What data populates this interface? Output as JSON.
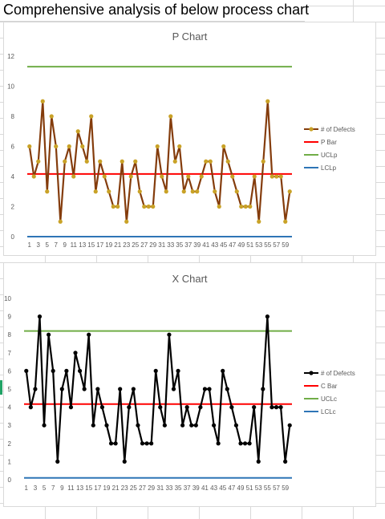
{
  "sheet": {
    "title": "Comprehensive analysis of below process chart"
  },
  "chart_data": [
    {
      "type": "line",
      "title": "P Chart",
      "xlabel": "",
      "ylabel": "",
      "ylim": [
        0,
        12
      ],
      "y_ticks": [
        0,
        2,
        4,
        6,
        8,
        10,
        12
      ],
      "x": [
        1,
        2,
        3,
        4,
        5,
        6,
        7,
        8,
        9,
        10,
        11,
        12,
        13,
        14,
        15,
        16,
        17,
        18,
        19,
        20,
        21,
        22,
        23,
        24,
        25,
        26,
        27,
        28,
        29,
        30,
        31,
        32,
        33,
        34,
        35,
        36,
        37,
        38,
        39,
        40,
        41,
        42,
        43,
        44,
        45,
        46,
        47,
        48,
        49,
        50,
        51,
        52,
        53,
        54,
        55,
        56,
        57,
        58,
        59,
        60
      ],
      "x_tick_labels": [
        "1",
        "3",
        "5",
        "7",
        "9",
        "11",
        "13",
        "15",
        "17",
        "19",
        "21",
        "23",
        "25",
        "27",
        "29",
        "31",
        "33",
        "35",
        "37",
        "39",
        "41",
        "43",
        "45",
        "47",
        "49",
        "51",
        "53",
        "55",
        "57",
        "59"
      ],
      "series": [
        {
          "name": "# of Defects",
          "color": "#843c0c",
          "marker_color": "#c9a227",
          "values": [
            6,
            4,
            5,
            9,
            3,
            8,
            6,
            1,
            5,
            6,
            4,
            7,
            6,
            5,
            8,
            3,
            5,
            4,
            3,
            2,
            2,
            5,
            1,
            4,
            5,
            3,
            2,
            2,
            2,
            6,
            4,
            3,
            8,
            5,
            6,
            3,
            4,
            3,
            3,
            4,
            5,
            5,
            3,
            2,
            6,
            5,
            4,
            3,
            2,
            2,
            2,
            4,
            1,
            5,
            9,
            4,
            4,
            4,
            1,
            3
          ]
        },
        {
          "name": "P Bar",
          "color": "#ff0000",
          "constant": 4.17
        },
        {
          "name": "UCLp",
          "color": "#70ad47",
          "constant": 11.3
        },
        {
          "name": "LCLp",
          "color": "#2e75b6",
          "constant": 0
        }
      ],
      "legend_position": "right",
      "grid": false
    },
    {
      "type": "line",
      "title": "X Chart",
      "xlabel": "",
      "ylabel": "",
      "ylim": [
        0,
        10
      ],
      "y_ticks": [
        0,
        1,
        2,
        3,
        4,
        5,
        6,
        7,
        8,
        9,
        10
      ],
      "x": [
        1,
        2,
        3,
        4,
        5,
        6,
        7,
        8,
        9,
        10,
        11,
        12,
        13,
        14,
        15,
        16,
        17,
        18,
        19,
        20,
        21,
        22,
        23,
        24,
        25,
        26,
        27,
        28,
        29,
        30,
        31,
        32,
        33,
        34,
        35,
        36,
        37,
        38,
        39,
        40,
        41,
        42,
        43,
        44,
        45,
        46,
        47,
        48,
        49,
        50,
        51,
        52,
        53,
        54,
        55,
        56,
        57,
        58,
        59,
        60
      ],
      "x_tick_labels": [
        "1",
        "3",
        "5",
        "7",
        "9",
        "11",
        "13",
        "15",
        "17",
        "19",
        "21",
        "23",
        "25",
        "27",
        "29",
        "31",
        "33",
        "35",
        "37",
        "39",
        "41",
        "43",
        "45",
        "47",
        "49",
        "51",
        "53",
        "55",
        "57",
        "59"
      ],
      "series": [
        {
          "name": "# of Defects",
          "color": "#000000",
          "marker_color": "#000000",
          "values": [
            6,
            4,
            5,
            9,
            3,
            8,
            6,
            1,
            5,
            6,
            4,
            7,
            6,
            5,
            8,
            3,
            5,
            4,
            3,
            2,
            2,
            5,
            1,
            4,
            5,
            3,
            2,
            2,
            2,
            6,
            4,
            3,
            8,
            5,
            6,
            3,
            4,
            3,
            3,
            4,
            5,
            5,
            3,
            2,
            6,
            5,
            4,
            3,
            2,
            2,
            2,
            4,
            1,
            5,
            9,
            4,
            4,
            4,
            1,
            3
          ]
        },
        {
          "name": "C Bar",
          "color": "#ff0000",
          "constant": 4.17
        },
        {
          "name": "UCLc",
          "color": "#70ad47",
          "constant": 8.2
        },
        {
          "name": "LCLc",
          "color": "#2e75b6",
          "constant": 0.1
        }
      ],
      "legend_position": "right",
      "grid": false
    }
  ]
}
